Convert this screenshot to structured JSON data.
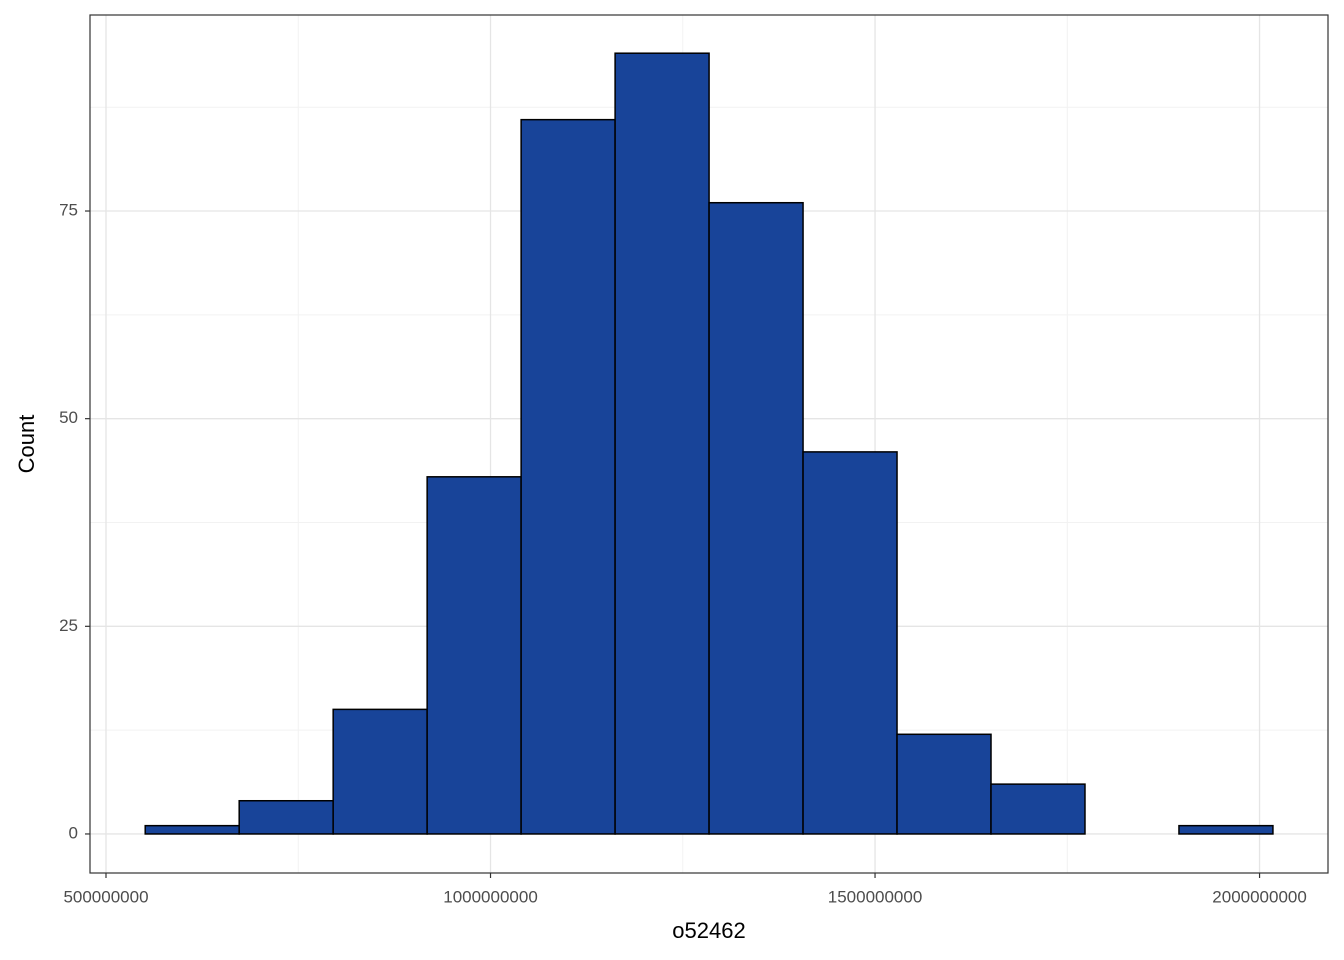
{
  "chart_data": {
    "type": "histogram",
    "x_label": "o52462",
    "y_label": "Count",
    "bins": [
      551000000,
      673200000,
      795400000,
      917600000,
      1039800000,
      1162000000,
      1284200000,
      1406400000,
      1528600000,
      1650800000,
      1773000000,
      1895200000,
      2017400000
    ],
    "values": [
      1,
      4,
      15,
      43,
      86,
      94,
      76,
      46,
      12,
      6,
      0,
      1
    ],
    "color": "#184499",
    "edge_color": "#000000",
    "xlim": [
      479200000,
      2089000000
    ],
    "ylim": [
      -4.7,
      98.6
    ],
    "xticks": [
      500000000,
      1000000000,
      1500000000,
      2000000000
    ],
    "yticks": [
      0,
      25,
      50,
      75
    ],
    "xminor": [
      750000000,
      1250000000,
      1750000000
    ],
    "yminor": [
      12.5,
      37.5,
      62.5,
      87.5
    ],
    "grid": true
  }
}
